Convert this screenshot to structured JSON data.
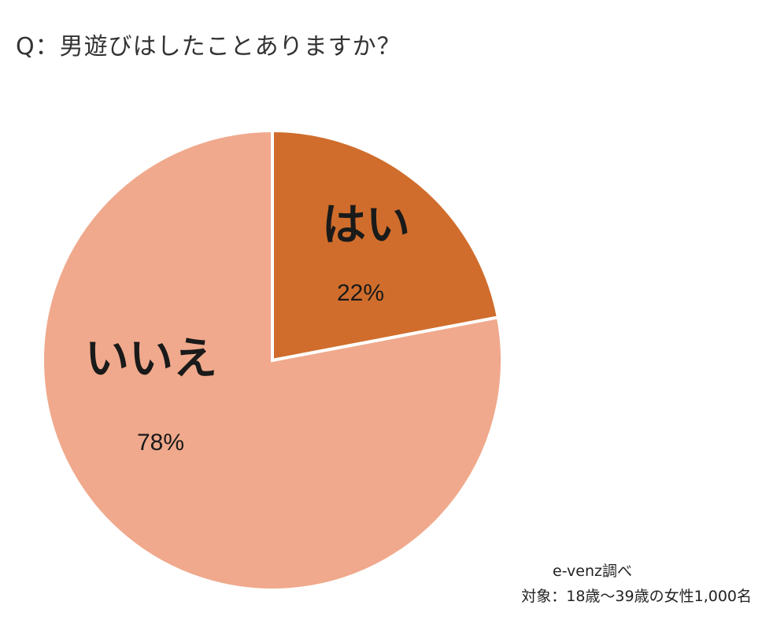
{
  "question": "Q：男遊びはしたことありますか？",
  "chart_data": {
    "type": "pie",
    "slices": [
      {
        "label": "はい",
        "value": 22,
        "value_label": "22%",
        "color": "#d06d2c"
      },
      {
        "label": "いいえ",
        "value": 78,
        "value_label": "78%",
        "color": "#f0a98c"
      }
    ],
    "start_angle": "12 o'clock",
    "direction": "clockwise"
  },
  "source": {
    "by": "e-venz調べ",
    "target": "対象：18歳〜39歳の女性1,000名"
  }
}
